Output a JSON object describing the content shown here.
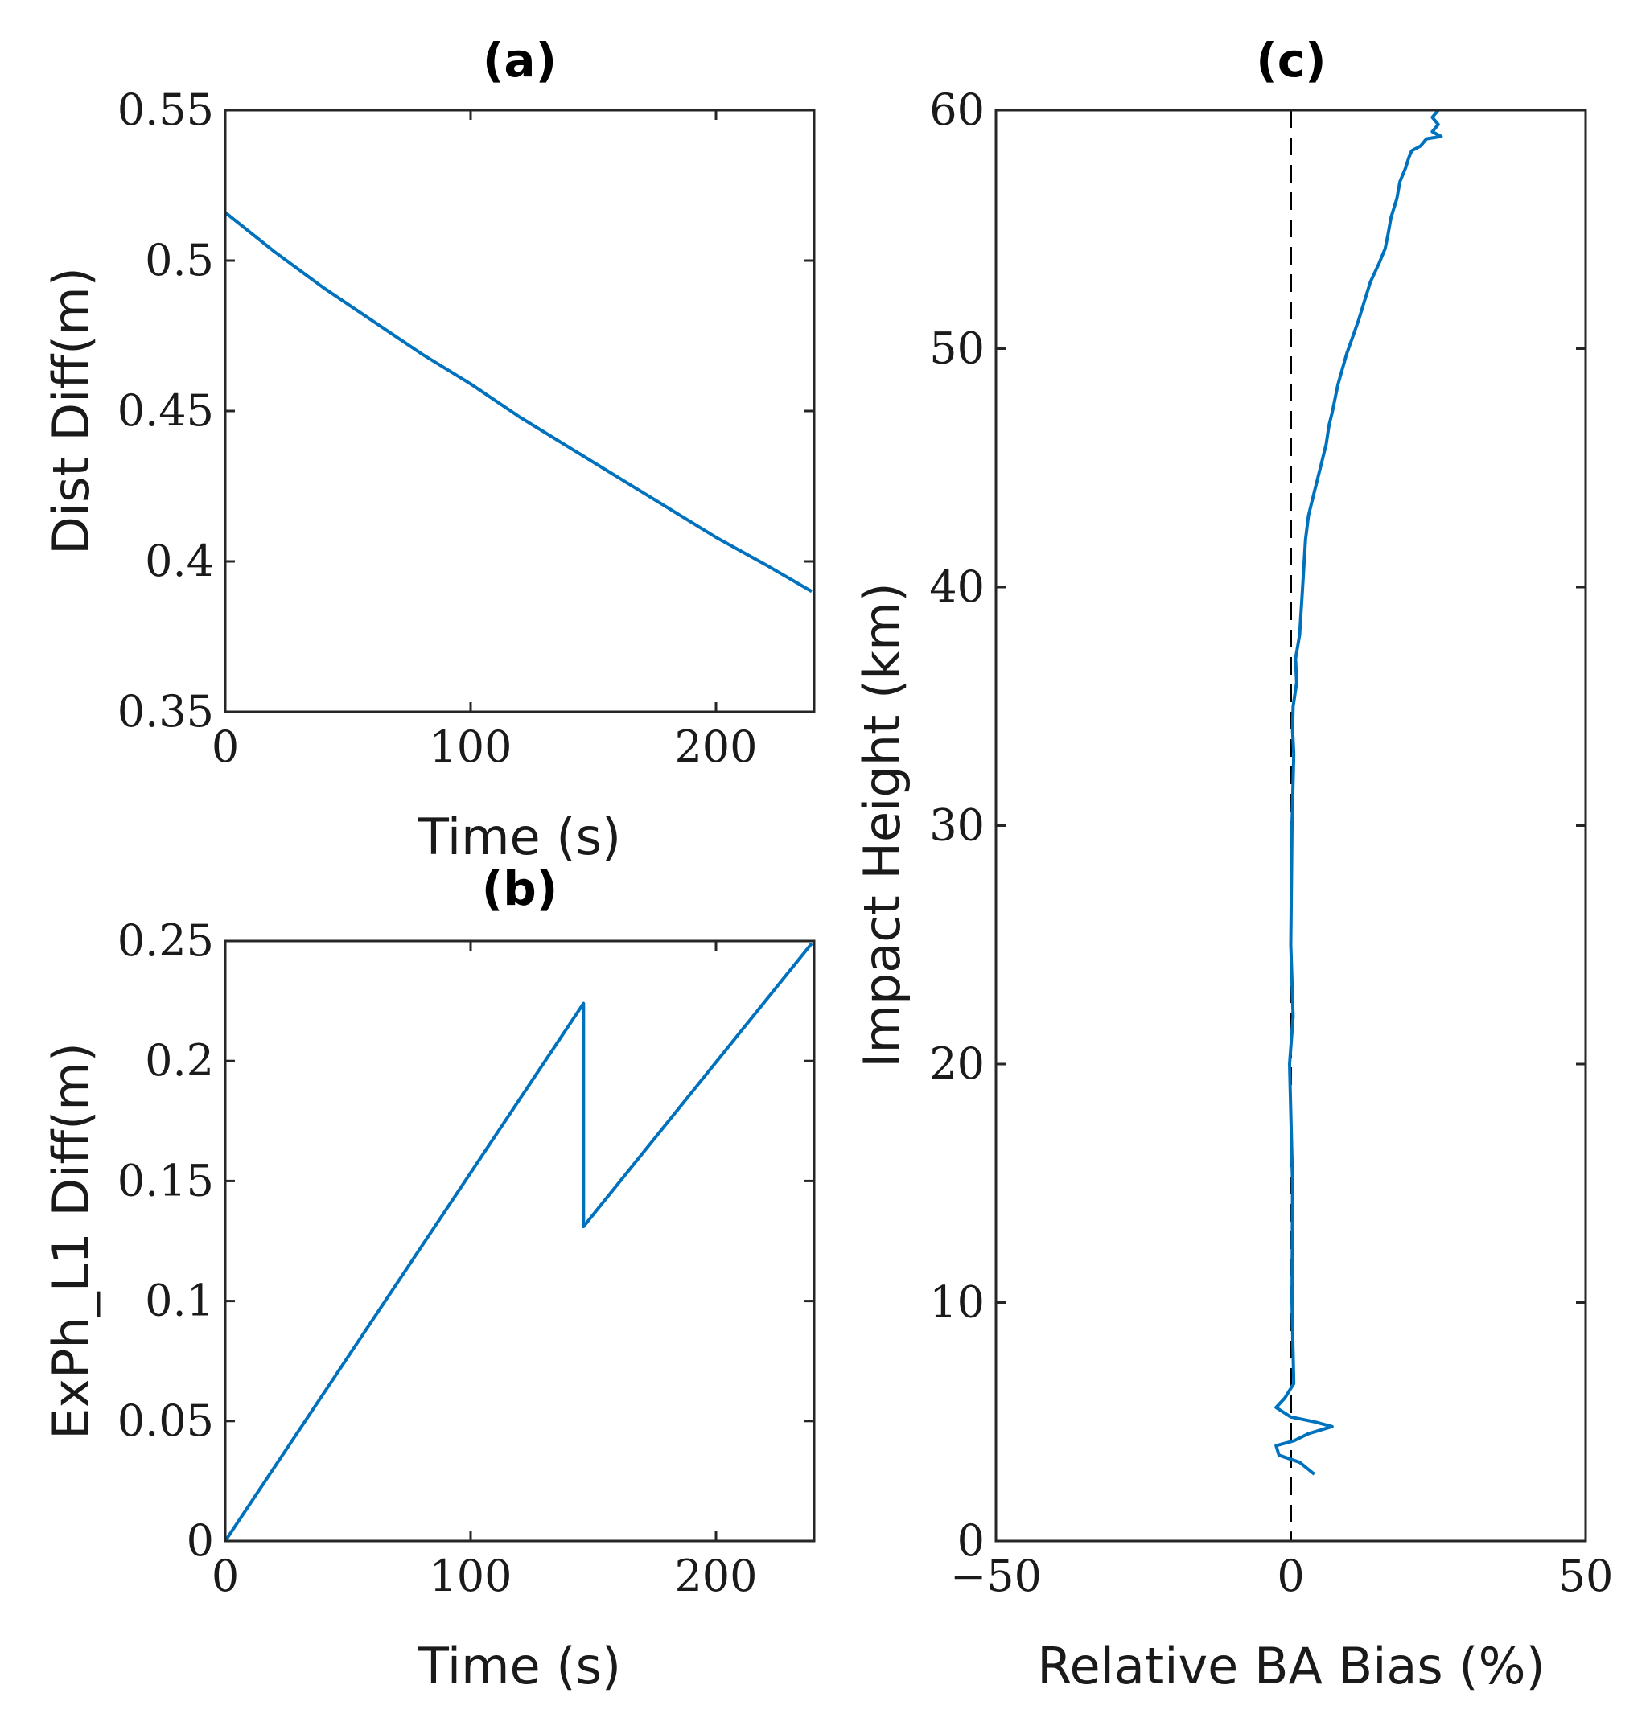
{
  "chart_data": [
    {
      "id": "a",
      "type": "line",
      "title": "(a)",
      "xlabel": "Time (s)",
      "ylabel": "Dist Diff(m)",
      "xlim": [
        0,
        240
      ],
      "ylim": [
        0.35,
        0.55
      ],
      "xticks": [
        0,
        100,
        200
      ],
      "xticklabels": [
        "0",
        "100",
        "200"
      ],
      "yticks": [
        0.35,
        0.4,
        0.45,
        0.5,
        0.55
      ],
      "yticklabels": [
        "0.35",
        "0.4",
        "0.45",
        "0.5",
        "0.55"
      ],
      "series": [
        {
          "name": "Dist Diff",
          "color": "#0072bd",
          "x": [
            0,
            20,
            40,
            60,
            80,
            100,
            120,
            140,
            160,
            180,
            200,
            220,
            239
          ],
          "y": [
            0.516,
            0.503,
            0.491,
            0.48,
            0.469,
            0.459,
            0.448,
            0.438,
            0.428,
            0.418,
            0.408,
            0.399,
            0.39
          ]
        }
      ]
    },
    {
      "id": "b",
      "type": "line",
      "title": "(b)",
      "xlabel": "Time (s)",
      "ylabel": "ExPh_L1 Diff(m)",
      "xlim": [
        0,
        240
      ],
      "ylim": [
        0,
        0.25
      ],
      "xticks": [
        0,
        100,
        200
      ],
      "xticklabels": [
        "0",
        "100",
        "200"
      ],
      "yticks": [
        0,
        0.05,
        0.1,
        0.15,
        0.2,
        0.25
      ],
      "yticklabels": [
        "0",
        "0.05",
        "0.1",
        "0.15",
        "0.2",
        "0.25"
      ],
      "series": [
        {
          "name": "ExPh_L1 Diff",
          "color": "#0072bd",
          "x": [
            0,
            146,
            146,
            239
          ],
          "y": [
            0.0,
            0.224,
            0.131,
            0.249
          ]
        }
      ]
    },
    {
      "id": "c",
      "type": "line",
      "title": "(c)",
      "xlabel": "Relative BA Bias (%)",
      "ylabel": "Impact Height (km)",
      "xlim": [
        -50,
        50
      ],
      "ylim": [
        0,
        60
      ],
      "xticks": [
        -50,
        0,
        50
      ],
      "xticklabels": [
        "−50",
        "0",
        "50"
      ],
      "yticks": [
        0,
        10,
        20,
        30,
        40,
        50,
        60
      ],
      "yticklabels": [
        "0",
        "10",
        "20",
        "30",
        "40",
        "50",
        "60"
      ],
      "reference_line": {
        "x": 0,
        "style": "dashed",
        "color": "#000000"
      },
      "series": [
        {
          "name": "Relative BA Bias",
          "color": "#0072bd",
          "x": [
            4.0,
            1.5,
            -2.0,
            -2.5,
            0.5,
            3.0,
            7.0,
            4.0,
            0.0,
            -2.5,
            -1.0,
            0.5,
            0.2,
            0.3,
            -0.2,
            0.4,
            0.0,
            0.2,
            0.5,
            0.3,
            0.4,
            1.0,
            0.8,
            1.5,
            2.0,
            2.5,
            3.0,
            4.0,
            5.0,
            6.0,
            6.5,
            7.0,
            8.0,
            9.5,
            10.5,
            11.5,
            12.5,
            13.5,
            15.0,
            16.0,
            16.5,
            17.0,
            18.0,
            18.5,
            19.5,
            20.0,
            20.5,
            22.0,
            23.0,
            25.5,
            24.0,
            25.0,
            24.0,
            25.0
          ],
          "y": [
            2.8,
            3.3,
            3.6,
            4.0,
            4.2,
            4.5,
            4.8,
            5.0,
            5.2,
            5.6,
            6.0,
            6.6,
            10,
            15,
            20,
            22,
            25,
            30,
            33,
            34,
            35,
            36,
            37,
            38,
            40,
            42,
            43,
            44,
            45,
            46,
            46.8,
            47.3,
            48.5,
            49.8,
            50.5,
            51.2,
            52.0,
            52.8,
            53.6,
            54.2,
            54.8,
            55.5,
            56.3,
            57.0,
            57.6,
            58.0,
            58.3,
            58.5,
            58.8,
            58.9,
            59.1,
            59.4,
            59.7,
            60.0
          ]
        }
      ]
    }
  ]
}
